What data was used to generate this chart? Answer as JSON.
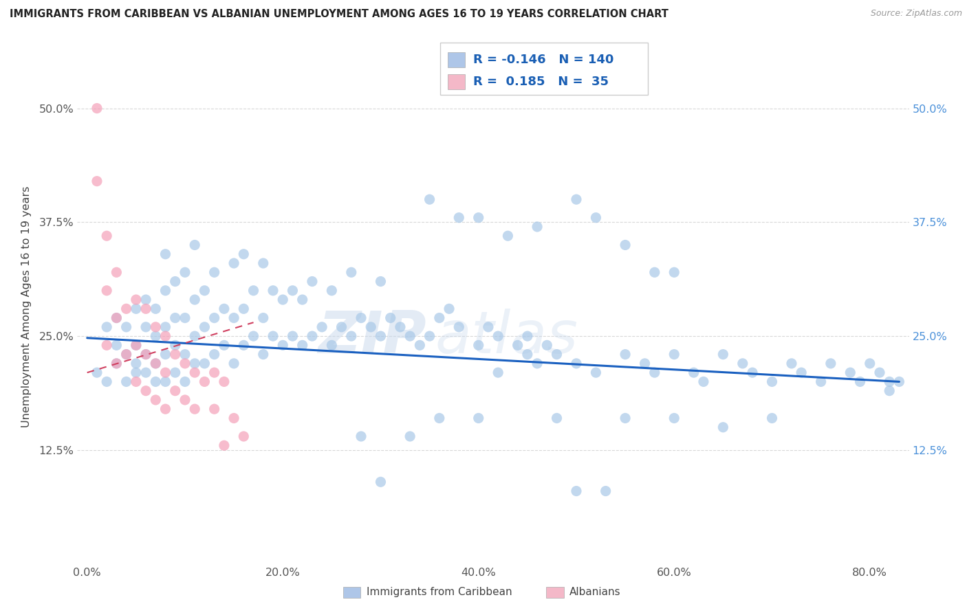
{
  "title": "IMMIGRANTS FROM CARIBBEAN VS ALBANIAN UNEMPLOYMENT AMONG AGES 16 TO 19 YEARS CORRELATION CHART",
  "source": "Source: ZipAtlas.com",
  "ylabel": "Unemployment Among Ages 16 to 19 years",
  "xlabel_ticks": [
    "0.0%",
    "20.0%",
    "40.0%",
    "60.0%",
    "80.0%"
  ],
  "xlabel_vals": [
    0.0,
    0.2,
    0.4,
    0.6,
    0.8
  ],
  "ylabel_ticks": [
    "12.5%",
    "25.0%",
    "37.5%",
    "50.0%"
  ],
  "ylabel_vals": [
    0.125,
    0.25,
    0.375,
    0.5
  ],
  "xlim": [
    -0.01,
    0.84
  ],
  "ylim": [
    0.0,
    0.565
  ],
  "legend_entries": [
    {
      "label": "Immigrants from Caribbean",
      "color": "#aec6e8",
      "R": "-0.146",
      "N": "140"
    },
    {
      "label": "Albanians",
      "color": "#f4b8c8",
      "R": "0.185",
      "N": "35"
    }
  ],
  "blue_scatter_x": [
    0.01,
    0.02,
    0.02,
    0.03,
    0.03,
    0.03,
    0.04,
    0.04,
    0.04,
    0.05,
    0.05,
    0.05,
    0.05,
    0.06,
    0.06,
    0.06,
    0.06,
    0.07,
    0.07,
    0.07,
    0.07,
    0.08,
    0.08,
    0.08,
    0.08,
    0.08,
    0.09,
    0.09,
    0.09,
    0.09,
    0.1,
    0.1,
    0.1,
    0.1,
    0.11,
    0.11,
    0.11,
    0.11,
    0.12,
    0.12,
    0.12,
    0.13,
    0.13,
    0.13,
    0.14,
    0.14,
    0.15,
    0.15,
    0.15,
    0.16,
    0.16,
    0.16,
    0.17,
    0.17,
    0.18,
    0.18,
    0.18,
    0.19,
    0.19,
    0.2,
    0.2,
    0.21,
    0.21,
    0.22,
    0.22,
    0.23,
    0.23,
    0.24,
    0.25,
    0.25,
    0.26,
    0.27,
    0.27,
    0.28,
    0.29,
    0.3,
    0.3,
    0.31,
    0.32,
    0.33,
    0.34,
    0.35,
    0.36,
    0.37,
    0.38,
    0.4,
    0.41,
    0.42,
    0.44,
    0.45,
    0.46,
    0.47,
    0.48,
    0.5,
    0.52,
    0.55,
    0.57,
    0.58,
    0.6,
    0.62,
    0.63,
    0.65,
    0.67,
    0.68,
    0.7,
    0.72,
    0.73,
    0.75,
    0.76,
    0.78,
    0.79,
    0.8,
    0.81,
    0.82,
    0.82,
    0.83,
    0.55,
    0.6,
    0.65,
    0.7,
    0.28,
    0.3,
    0.33,
    0.36,
    0.4,
    0.42,
    0.45,
    0.48,
    0.5,
    0.53,
    0.35,
    0.38,
    0.4,
    0.43,
    0.46,
    0.5,
    0.52,
    0.55,
    0.58,
    0.6
  ],
  "blue_scatter_y": [
    0.21,
    0.2,
    0.26,
    0.22,
    0.24,
    0.27,
    0.2,
    0.23,
    0.26,
    0.21,
    0.24,
    0.22,
    0.28,
    0.21,
    0.23,
    0.26,
    0.29,
    0.2,
    0.22,
    0.25,
    0.28,
    0.2,
    0.23,
    0.26,
    0.3,
    0.34,
    0.21,
    0.24,
    0.27,
    0.31,
    0.2,
    0.23,
    0.27,
    0.32,
    0.22,
    0.25,
    0.29,
    0.35,
    0.22,
    0.26,
    0.3,
    0.23,
    0.27,
    0.32,
    0.24,
    0.28,
    0.22,
    0.27,
    0.33,
    0.24,
    0.28,
    0.34,
    0.25,
    0.3,
    0.23,
    0.27,
    0.33,
    0.25,
    0.3,
    0.24,
    0.29,
    0.25,
    0.3,
    0.24,
    0.29,
    0.25,
    0.31,
    0.26,
    0.24,
    0.3,
    0.26,
    0.25,
    0.32,
    0.27,
    0.26,
    0.25,
    0.31,
    0.27,
    0.26,
    0.25,
    0.24,
    0.25,
    0.27,
    0.28,
    0.26,
    0.24,
    0.26,
    0.25,
    0.24,
    0.23,
    0.22,
    0.24,
    0.23,
    0.22,
    0.21,
    0.23,
    0.22,
    0.21,
    0.23,
    0.21,
    0.2,
    0.23,
    0.22,
    0.21,
    0.2,
    0.22,
    0.21,
    0.2,
    0.22,
    0.21,
    0.2,
    0.22,
    0.21,
    0.2,
    0.19,
    0.2,
    0.16,
    0.16,
    0.15,
    0.16,
    0.14,
    0.09,
    0.14,
    0.16,
    0.16,
    0.21,
    0.25,
    0.16,
    0.08,
    0.08,
    0.4,
    0.38,
    0.38,
    0.36,
    0.37,
    0.4,
    0.38,
    0.35,
    0.32,
    0.32
  ],
  "pink_scatter_x": [
    0.01,
    0.01,
    0.02,
    0.02,
    0.02,
    0.03,
    0.03,
    0.03,
    0.04,
    0.04,
    0.05,
    0.05,
    0.05,
    0.06,
    0.06,
    0.06,
    0.07,
    0.07,
    0.07,
    0.08,
    0.08,
    0.08,
    0.09,
    0.09,
    0.1,
    0.1,
    0.11,
    0.11,
    0.12,
    0.13,
    0.13,
    0.14,
    0.14,
    0.15,
    0.16
  ],
  "pink_scatter_y": [
    0.5,
    0.42,
    0.36,
    0.3,
    0.24,
    0.32,
    0.27,
    0.22,
    0.28,
    0.23,
    0.29,
    0.24,
    0.2,
    0.28,
    0.23,
    0.19,
    0.26,
    0.22,
    0.18,
    0.25,
    0.21,
    0.17,
    0.23,
    0.19,
    0.22,
    0.18,
    0.21,
    0.17,
    0.2,
    0.21,
    0.17,
    0.2,
    0.13,
    0.16,
    0.14
  ],
  "blue_trend_x": [
    0.0,
    0.83
  ],
  "blue_trend_y": [
    0.248,
    0.2
  ],
  "pink_trend_x": [
    0.0,
    0.17
  ],
  "pink_trend_y": [
    0.21,
    0.265
  ],
  "scatter_color_blue": "#a8c8e8",
  "scatter_color_pink": "#f4a0b8",
  "trend_color_blue": "#1a60c0",
  "trend_color_pink": "#d04060",
  "watermark_zip": "ZIP",
  "watermark_atlas": "atlas",
  "background_color": "#ffffff",
  "grid_color": "#d8d8d8",
  "legend_text_color": "#1a5fb4",
  "right_tick_color": "#4a90d9"
}
